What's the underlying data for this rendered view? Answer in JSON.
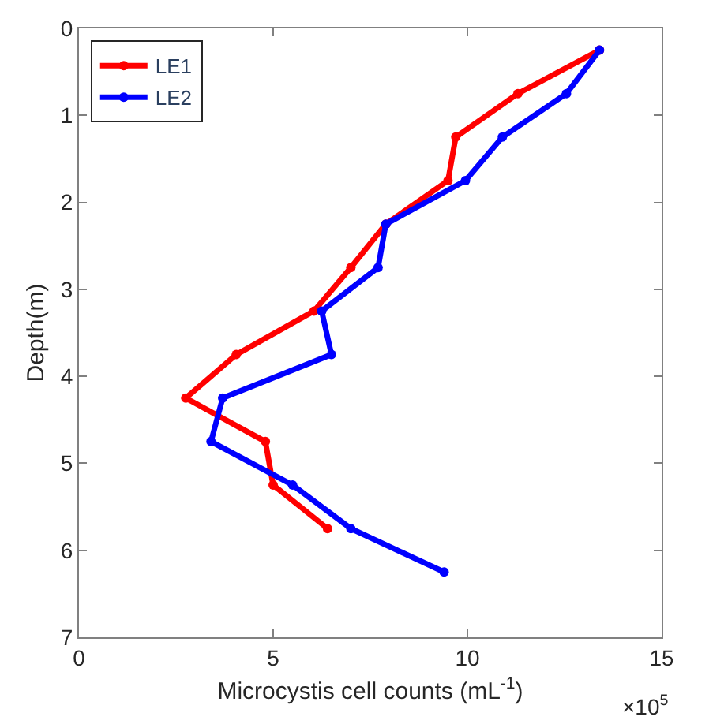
{
  "chart_data": {
    "type": "line",
    "xlabel": "Microcystis cell counts (mL$^{-1}$)",
    "ylabel": "Depth(m)",
    "annotations": [
      "×10$^{5}$"
    ],
    "xlim": [
      0,
      15
    ],
    "xticks": [
      0,
      5,
      10,
      15
    ],
    "ylim": [
      7,
      0
    ],
    "yticks": [
      0,
      1,
      2,
      3,
      4,
      5,
      6,
      7
    ],
    "legend": "top left",
    "marker": "circle",
    "line_style": "solid",
    "series": [
      {
        "name": "LE1",
        "color": "#ff0000",
        "x": [
          13.4,
          11.3,
          9.7,
          9.5,
          7.9,
          7.0,
          6.05,
          4.05,
          2.75,
          4.8,
          5.0,
          6.4
        ],
        "values": [
          0.25,
          0.75,
          1.25,
          1.75,
          2.25,
          2.75,
          3.25,
          3.75,
          4.25,
          4.75,
          5.25,
          5.75
        ]
      },
      {
        "name": "LE2",
        "color": "#0000ff",
        "x": [
          13.4,
          12.55,
          10.9,
          9.95,
          7.9,
          7.7,
          6.25,
          6.5,
          3.7,
          3.4,
          5.5,
          7.0,
          9.4
        ],
        "values": [
          0.25,
          0.75,
          1.25,
          1.75,
          2.25,
          2.75,
          3.25,
          3.75,
          4.25,
          4.75,
          5.25,
          5.75,
          6.25
        ]
      }
    ]
  }
}
